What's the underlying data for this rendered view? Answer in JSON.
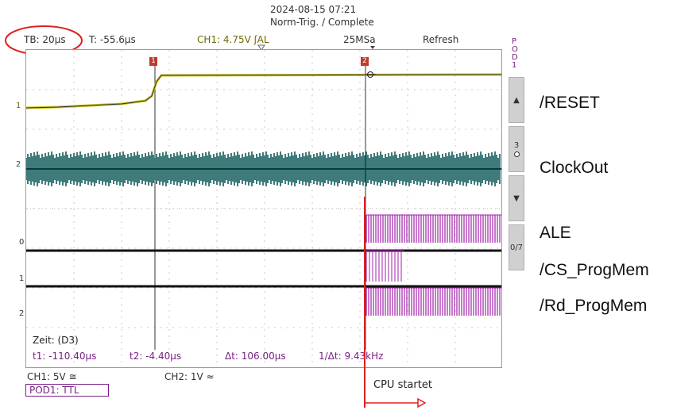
{
  "header": {
    "datetime": "2024-08-15 07:21",
    "status": "Norm-Trig. / Complete"
  },
  "topbar": {
    "timebase": "TB: 20µs",
    "trigger_time": "T: -55.6µs",
    "ch1_trigger": "CH1: 4.75V ʃAL",
    "sample_rate": "25MSa",
    "refresh": "Refresh"
  },
  "side_panel": {
    "pod_label": "POD1",
    "up": "▲",
    "channel_num": "3",
    "down": "▼",
    "range": "0/7"
  },
  "markers": {
    "m1": "1",
    "m2": "2",
    "ch1": "1",
    "ch2": "2",
    "d0": "0",
    "d1": "1",
    "d2": "2"
  },
  "measurement": {
    "title": "Zeit: (D3)",
    "t1": "t1: -110.40µs",
    "t2": "t2: -4.40µs",
    "dt": "Δt: 106.00µs",
    "inv_dt": "1/Δt: 9.43kHz"
  },
  "bottom": {
    "ch1": "CH1: 5V ≅",
    "ch2": "CH2: 1V ≈",
    "pod1": "POD1: TTL"
  },
  "annotations": {
    "reset": "/RESET",
    "clockout": "ClockOut",
    "ale": "ALE",
    "cs": "/CS_ProgMem",
    "rd": "/Rd_ProgMem",
    "cpu": "CPU startet"
  },
  "colors": {
    "ch1": "#c9c21a",
    "ch2": "#0f5a58",
    "digital": "#a020a8",
    "annotation": "#e02020",
    "marker": "#c0392b"
  }
}
